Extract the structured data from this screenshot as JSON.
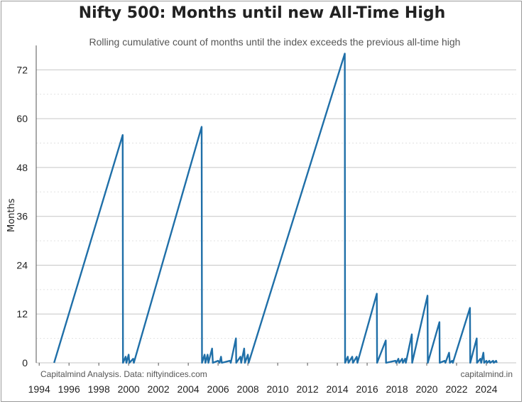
{
  "chart_data": {
    "type": "line",
    "title": "Nifty 500: Months until new All-Time High",
    "subtitle": "Rolling cumulative count of months until the index exceeds the previous all-time high",
    "xlabel": "",
    "ylabel": "Months",
    "xlim": [
      1993.8,
      2026.0
    ],
    "ylim": [
      0,
      78
    ],
    "x_ticks": [
      "1994",
      "1996",
      "1998",
      "2000",
      "2002",
      "2004",
      "2006",
      "2008",
      "2010",
      "2012",
      "2014",
      "2016",
      "2018",
      "2020",
      "2022",
      "2024"
    ],
    "y_ticks": [
      "0",
      "12",
      "24",
      "36",
      "48",
      "60",
      "72"
    ],
    "grid": "horizontal",
    "series": [
      {
        "color": "#1f6fa8",
        "points": [
          [
            1995.0,
            0
          ],
          [
            1999.6,
            56
          ],
          [
            1999.62,
            0
          ],
          [
            1999.8,
            1.5
          ],
          [
            1999.85,
            0
          ],
          [
            2000.0,
            2
          ],
          [
            2000.05,
            0
          ],
          [
            2000.3,
            1
          ],
          [
            2000.35,
            0
          ],
          [
            2004.9,
            58
          ],
          [
            2004.92,
            0
          ],
          [
            2005.1,
            2
          ],
          [
            2005.15,
            0
          ],
          [
            2005.3,
            2
          ],
          [
            2005.35,
            0
          ],
          [
            2005.6,
            3.5
          ],
          [
            2005.65,
            0
          ],
          [
            2006.0,
            0.5
          ],
          [
            2006.1,
            0
          ],
          [
            2006.2,
            1.5
          ],
          [
            2006.25,
            0
          ],
          [
            2006.8,
            0.5
          ],
          [
            2006.85,
            0
          ],
          [
            2007.2,
            6
          ],
          [
            2007.22,
            0
          ],
          [
            2007.5,
            1.5
          ],
          [
            2007.55,
            0
          ],
          [
            2007.75,
            3.5
          ],
          [
            2007.8,
            0
          ],
          [
            2008.0,
            2
          ],
          [
            2008.05,
            0
          ],
          [
            2014.5,
            76
          ],
          [
            2014.52,
            0
          ],
          [
            2014.7,
            1.5
          ],
          [
            2014.75,
            0
          ],
          [
            2015.0,
            1.5
          ],
          [
            2015.05,
            0
          ],
          [
            2015.3,
            1.5
          ],
          [
            2015.35,
            0
          ],
          [
            2016.65,
            17
          ],
          [
            2016.67,
            0
          ],
          [
            2017.25,
            5.5
          ],
          [
            2017.27,
            0
          ],
          [
            2017.9,
            0.5
          ],
          [
            2017.95,
            0
          ],
          [
            2018.1,
            1
          ],
          [
            2018.15,
            0
          ],
          [
            2018.35,
            1
          ],
          [
            2018.4,
            0
          ],
          [
            2018.55,
            1
          ],
          [
            2018.6,
            0
          ],
          [
            2019.0,
            7
          ],
          [
            2019.02,
            0
          ],
          [
            2020.05,
            16.5
          ],
          [
            2020.07,
            0
          ],
          [
            2020.85,
            10
          ],
          [
            2020.87,
            0
          ],
          [
            2021.2,
            0.5
          ],
          [
            2021.25,
            0
          ],
          [
            2021.5,
            2.5
          ],
          [
            2021.55,
            0
          ],
          [
            2021.7,
            0.5
          ],
          [
            2021.75,
            0
          ],
          [
            2022.9,
            13.5
          ],
          [
            2022.92,
            0
          ],
          [
            2023.35,
            6
          ],
          [
            2023.37,
            0
          ],
          [
            2023.6,
            1
          ],
          [
            2023.65,
            0
          ],
          [
            2023.8,
            2.5
          ],
          [
            2023.85,
            0
          ],
          [
            2024.0,
            0.5
          ],
          [
            2024.05,
            0
          ],
          [
            2024.2,
            0.5
          ],
          [
            2024.25,
            0
          ],
          [
            2024.45,
            0.5
          ],
          [
            2024.5,
            0
          ],
          [
            2024.65,
            0.5
          ],
          [
            2024.7,
            0
          ]
        ]
      }
    ],
    "annotations": {
      "source": "Capitalmind Analysis. Data: niftyindices.com",
      "brand": "capitalmind.in"
    }
  }
}
